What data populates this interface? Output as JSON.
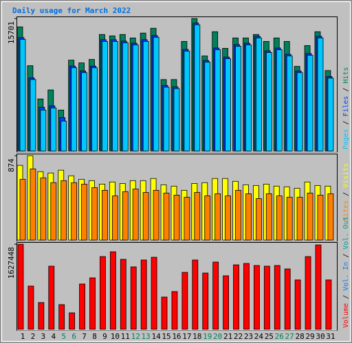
{
  "title": "Daily usage for March 2022",
  "legend_separator": " / ",
  "chart_data": [
    {
      "type": "bar",
      "ylim": [
        0,
        15701
      ],
      "yticks": [
        15701
      ],
      "series": [
        {
          "name": "Hits",
          "color": "#00805c",
          "values": [
            14714,
            10111,
            6165,
            7234,
            4850,
            10769,
            10440,
            10851,
            13810,
            13646,
            13810,
            13400,
            13975,
            14550,
            8467,
            8467,
            12988,
            15701,
            11262,
            14139,
            12166,
            13400,
            13400,
            13810,
            12988,
            13400,
            12988,
            10029,
            12495,
            14139,
            9536
          ]
        },
        {
          "name": "Files",
          "color": "#0040ff",
          "values": [
            13435,
            8667,
            5179,
            5343,
            3946,
            10064,
            9489,
            10064,
            13188,
            13188,
            13024,
            12777,
            13188,
            13682,
            7763,
            7598,
            12038,
            15161,
            10722,
            12202,
            11133,
            12613,
            12777,
            13600,
            11873,
            12202,
            11462,
            9489,
            11544,
            13600,
            8831
          ]
        },
        {
          "name": "Pages",
          "color": "#00c8ff",
          "values": [
            13235,
            8467,
            4850,
            5097,
            3535,
            9864,
            9289,
            9864,
            12988,
            12988,
            12824,
            12577,
            12988,
            13482,
            7563,
            7398,
            11838,
            14961,
            10522,
            12002,
            10933,
            12413,
            12577,
            13400,
            11673,
            12002,
            11262,
            9289,
            11344,
            13400,
            8631
          ]
        }
      ]
    },
    {
      "type": "bar",
      "ylim": [
        0,
        874
      ],
      "yticks": [
        874
      ],
      "series": [
        {
          "name": "Visits",
          "color": "#ffff00",
          "values": [
            774,
            874,
            709,
            695,
            724,
            666,
            630,
            616,
            580,
            602,
            587,
            616,
            616,
            638,
            573,
            559,
            516,
            587,
            595,
            638,
            638,
            609,
            573,
            566,
            580,
            559,
            552,
            537,
            602,
            566,
            559
          ]
        },
        {
          "name": "Sites",
          "color": "#ff8000",
          "values": [
            630,
            738,
            645,
            595,
            616,
            595,
            580,
            544,
            516,
            458,
            502,
            530,
            494,
            516,
            487,
            466,
            444,
            494,
            458,
            480,
            458,
            516,
            480,
            430,
            480,
            458,
            444,
            444,
            487,
            466,
            480
          ]
        }
      ]
    },
    {
      "type": "bar",
      "ylim": [
        0,
        1627448
      ],
      "yticks": [
        1627448
      ],
      "categories": [
        "1",
        "2",
        "3",
        "4",
        "5",
        "6",
        "7",
        "8",
        "9",
        "10",
        "11",
        "12",
        "13",
        "14",
        "15",
        "16",
        "17",
        "18",
        "19",
        "20",
        "21",
        "22",
        "23",
        "24",
        "25",
        "26",
        "27",
        "28",
        "29",
        "30",
        "31"
      ],
      "category_colors": [
        "#000000",
        "#000000",
        "#000000",
        "#000000",
        "#00805c",
        "#00805c",
        "#000000",
        "#000000",
        "#000000",
        "#000000",
        "#000000",
        "#00805c",
        "#00805c",
        "#000000",
        "#000000",
        "#000000",
        "#000000",
        "#000000",
        "#00805c",
        "#00805c",
        "#000000",
        "#000000",
        "#000000",
        "#000000",
        "#000000",
        "#00805c",
        "#00805c",
        "#000000",
        "#000000",
        "#000000",
        "#000000"
      ],
      "series": [
        {
          "name": "Volume",
          "color": "#ff0000",
          "values": [
            1627448,
            826853,
            511857,
            1207461,
            472484,
            314990,
            866225,
            984347,
            1391203,
            1483077,
            1338703,
            1194337,
            1325579,
            1378080,
            616853,
            721853,
            1089339,
            1325579,
            1076215,
            1286206,
            1023718,
            1233709,
            1259966,
            1220586,
            1207461,
            1220586,
            1154963,
            944975,
            1391203,
            1614324,
            944975
          ]
        }
      ],
      "extra_legend": [
        {
          "name": "Vol. In",
          "color": "#0080ff"
        },
        {
          "name": "Vol. Out",
          "color": "#00a0a0"
        }
      ]
    }
  ]
}
